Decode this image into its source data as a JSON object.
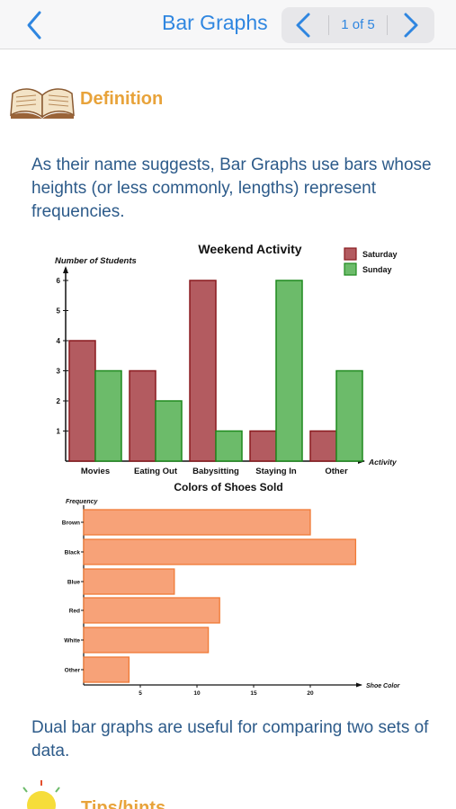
{
  "navbar": {
    "title": "Bar Graphs",
    "pager_text": "1 of 5",
    "accent_color": "#2f86e0"
  },
  "definition": {
    "title": "Definition",
    "icon": "open-book-icon",
    "text": "As their name suggests, Bar Graphs use bars whose heights (or less commonly, lengths) represent frequencies."
  },
  "chart_data": [
    {
      "type": "bar",
      "title": "Weekend Activity",
      "ylabel": "Number of Students",
      "xlabel": "Activity",
      "categories": [
        "Movies",
        "Eating Out",
        "Babysitting",
        "Staying In",
        "Other"
      ],
      "yticks": [
        "1",
        "2",
        "3",
        "4",
        "5",
        "6"
      ],
      "ylim": [
        0,
        6
      ],
      "legend_position": "top-right",
      "series": [
        {
          "name": "Saturday",
          "values": [
            4,
            3,
            6,
            1,
            1
          ],
          "color": "#b35b60"
        },
        {
          "name": "Sunday",
          "values": [
            3,
            2,
            1,
            6,
            3
          ],
          "color": "#6cbb6a"
        }
      ]
    },
    {
      "type": "bar",
      "orientation": "horizontal",
      "title": "Colors of Shoes Sold",
      "ylabel": "Frequency",
      "xlabel": "Shoe Color",
      "categories": [
        "Brown",
        "Black",
        "Blue",
        "Red",
        "White",
        "Other"
      ],
      "values": [
        20,
        24,
        8,
        12,
        11,
        4
      ],
      "xticks": [
        "5",
        "10",
        "15",
        "20"
      ],
      "xlim": [
        0,
        25
      ],
      "color": "#f7a278"
    }
  ],
  "summary": {
    "text": "Dual bar graphs are useful for comparing two sets of data."
  },
  "tips": {
    "title": "Tips/hints",
    "icon": "lightbulb-icon"
  }
}
